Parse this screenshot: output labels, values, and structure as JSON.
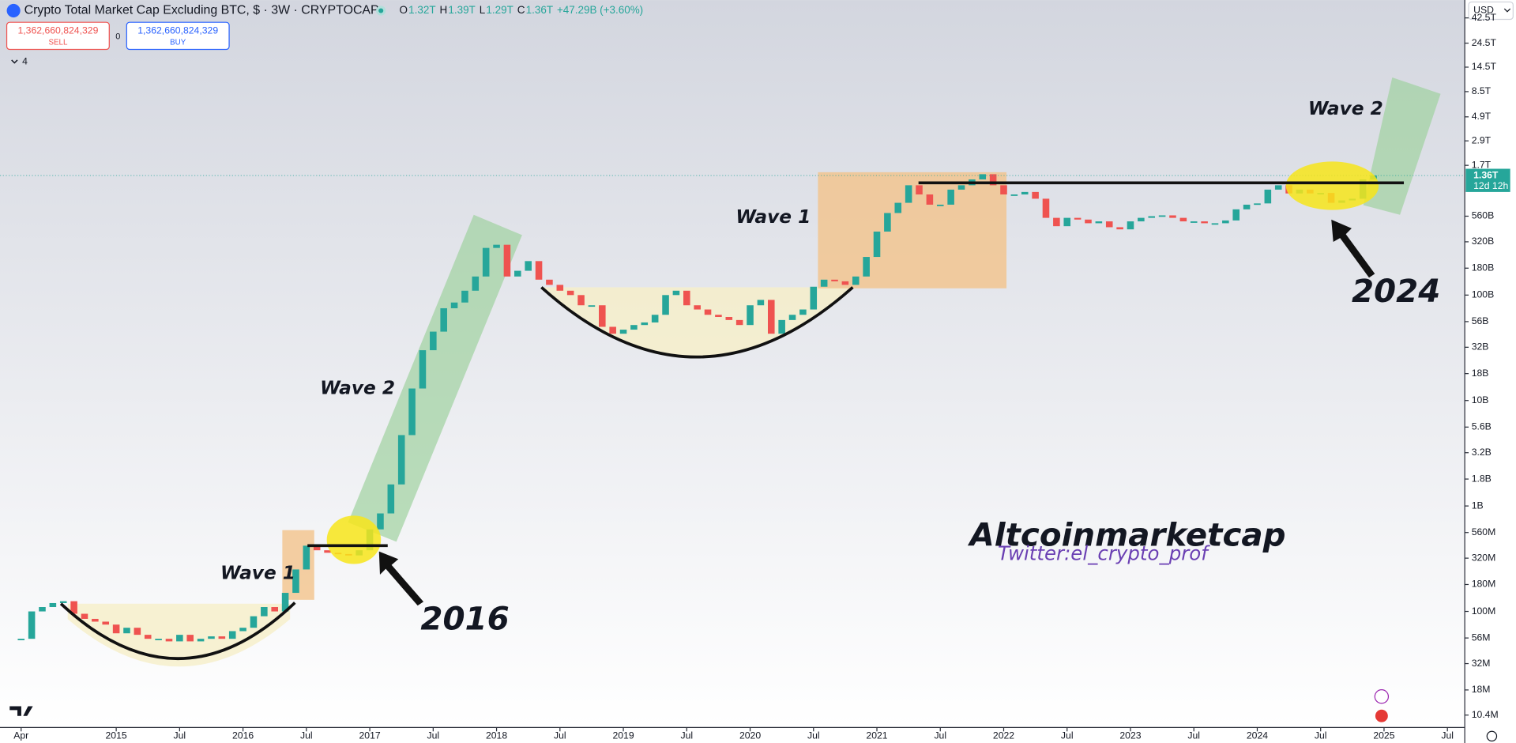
{
  "header": {
    "title": "Crypto Total Market Cap Excluding BTC, $ · 3W · CRYPTOCAP",
    "ohlc": [
      {
        "label": "O",
        "value": "1.32T"
      },
      {
        "label": "H",
        "value": "1.39T"
      },
      {
        "label": "L",
        "value": "1.29T"
      },
      {
        "label": "C",
        "value": "1.36T"
      }
    ],
    "change": "+47.29B (+3.60%)",
    "sell": {
      "price": "1,362,660,824,329",
      "label": "SELL"
    },
    "spread": "0",
    "buy": {
      "price": "1,362,660,824,329",
      "label": "BUY"
    },
    "indicators": "4",
    "currency": "USD",
    "price_tag": {
      "value": "1.36T",
      "countdown": "12d 12h"
    }
  },
  "chart_data": {
    "type": "candlestick",
    "x": [
      "2014-04",
      "2014-05",
      "2014-06",
      "2014-07",
      "2014-08",
      "2014-09",
      "2014-10",
      "2014-11",
      "2014-12",
      "2015-01",
      "2015-02",
      "2015-03",
      "2015-04",
      "2015-05",
      "2015-06",
      "2015-07",
      "2015-08",
      "2015-09",
      "2015-10",
      "2015-11",
      "2015-12",
      "2016-01",
      "2016-02",
      "2016-03",
      "2016-04",
      "2016-05",
      "2016-06",
      "2016-07",
      "2016-08",
      "2016-09",
      "2016-10",
      "2016-11",
      "2016-12",
      "2017-01",
      "2017-02",
      "2017-03",
      "2017-04",
      "2017-05",
      "2017-06",
      "2017-07",
      "2017-08",
      "2017-09",
      "2017-10",
      "2017-11",
      "2017-12",
      "2018-01",
      "2018-02",
      "2018-03",
      "2018-04",
      "2018-05",
      "2018-06",
      "2018-07",
      "2018-08",
      "2018-09",
      "2018-10",
      "2018-11",
      "2018-12",
      "2019-01",
      "2019-02",
      "2019-03",
      "2019-04",
      "2019-05",
      "2019-06",
      "2019-07",
      "2019-08",
      "2019-09",
      "2019-10",
      "2019-11",
      "2019-12",
      "2020-01",
      "2020-02",
      "2020-03",
      "2020-04",
      "2020-05",
      "2020-06",
      "2020-07",
      "2020-08",
      "2020-09",
      "2020-10",
      "2020-11",
      "2020-12",
      "2021-01",
      "2021-02",
      "2021-03",
      "2021-04",
      "2021-05",
      "2021-06",
      "2021-07",
      "2021-08",
      "2021-09",
      "2021-10",
      "2021-11",
      "2021-12",
      "2022-01",
      "2022-02",
      "2022-03",
      "2022-04",
      "2022-05",
      "2022-06",
      "2022-07",
      "2022-08",
      "2022-09",
      "2022-10",
      "2022-11",
      "2022-12",
      "2023-01",
      "2023-02",
      "2023-03",
      "2023-04",
      "2023-05",
      "2023-06",
      "2023-07",
      "2023-08",
      "2023-09",
      "2023-10",
      "2023-11",
      "2023-12",
      "2024-01",
      "2024-02",
      "2024-03",
      "2024-04",
      "2024-05",
      "2024-06",
      "2024-07",
      "2024-08",
      "2024-09",
      "2024-10",
      "2024-11",
      "2024-12"
    ],
    "series": [
      {
        "up_color": "#26a69a",
        "down_color": "#ef5350",
        "values": [
          55000000,
          100000000,
          110000000,
          120000000,
          125000000,
          95000000,
          85000000,
          80000000,
          75000000,
          62000000,
          70000000,
          60000000,
          55000000,
          55000000,
          52000000,
          60000000,
          52000000,
          55000000,
          58000000,
          55000000,
          65000000,
          70000000,
          90000000,
          110000000,
          100000000,
          150000000,
          250000000,
          420000000,
          380000000,
          360000000,
          350000000,
          340000000,
          380000000,
          600000000,
          850000000,
          1600000000,
          4700000000,
          13000000000,
          30000000000,
          45000000000,
          75000000000,
          85000000000,
          110000000000,
          150000000000,
          280000000000,
          300000000000,
          150000000000,
          170000000000,
          210000000000,
          140000000000,
          125000000000,
          110000000000,
          100000000000,
          80000000000,
          80000000000,
          50000000000,
          43000000000,
          47000000000,
          52000000000,
          55000000000,
          65000000000,
          100000000000,
          110000000000,
          80000000000,
          73000000000,
          65000000000,
          62000000000,
          58000000000,
          52000000000,
          80000000000,
          90000000000,
          43000000000,
          58000000000,
          65000000000,
          73000000000,
          120000000000,
          140000000000,
          135000000000,
          125000000000,
          150000000000,
          230000000000,
          400000000000,
          600000000000,
          750000000000,
          1100000000000,
          900000000000,
          720000000000,
          720000000000,
          1000000000000,
          1100000000000,
          1250000000000,
          1400000000000,
          1100000000000,
          900000000000,
          900000000000,
          950000000000,
          820000000000,
          540000000000,
          450000000000,
          540000000000,
          520000000000,
          480000000000,
          500000000000,
          440000000000,
          420000000000,
          500000000000,
          540000000000,
          560000000000,
          570000000000,
          540000000000,
          500000000000,
          500000000000,
          480000000000,
          480000000000,
          510000000000,
          650000000000,
          720000000000,
          740000000000,
          1000000000000,
          1100000000000,
          920000000000,
          1000000000000,
          920000000000,
          930000000000,
          750000000000,
          790000000000,
          820000000000,
          1250000000000,
          1360000000000
        ]
      }
    ],
    "xlim": [
      "2014-02",
      "2025-08"
    ],
    "xticks": [
      {
        "value": "2014-04",
        "label": "Apr"
      },
      {
        "value": "2015-01",
        "label": "2015"
      },
      {
        "value": "2015-07",
        "label": "Jul"
      },
      {
        "value": "2016-01",
        "label": "2016"
      },
      {
        "value": "2016-07",
        "label": "Jul"
      },
      {
        "value": "2017-01",
        "label": "2017"
      },
      {
        "value": "2017-07",
        "label": "Jul"
      },
      {
        "value": "2018-01",
        "label": "2018"
      },
      {
        "value": "2018-07",
        "label": "Jul"
      },
      {
        "value": "2019-01",
        "label": "2019"
      },
      {
        "value": "2019-07",
        "label": "Jul"
      },
      {
        "value": "2020-01",
        "label": "2020"
      },
      {
        "value": "2020-07",
        "label": "Jul"
      },
      {
        "value": "2021-01",
        "label": "2021"
      },
      {
        "value": "2021-07",
        "label": "Jul"
      },
      {
        "value": "2022-01",
        "label": "2022"
      },
      {
        "value": "2022-07",
        "label": "Jul"
      },
      {
        "value": "2023-01",
        "label": "2023"
      },
      {
        "value": "2023-07",
        "label": "Jul"
      },
      {
        "value": "2024-01",
        "label": "2024"
      },
      {
        "value": "2024-07",
        "label": "Jul"
      },
      {
        "value": "2025-01",
        "label": "2025"
      },
      {
        "value": "2025-07",
        "label": "Jul"
      }
    ],
    "log_scale": true,
    "ylim": [
      7930000,
      62800000000000
    ],
    "yticks": [
      {
        "value": 42500000000000,
        "label": "42.5T"
      },
      {
        "value": 24500000000000,
        "label": "24.5T"
      },
      {
        "value": 14500000000000,
        "label": "14.5T"
      },
      {
        "value": 8500000000000,
        "label": "8.5T"
      },
      {
        "value": 4900000000000,
        "label": "4.9T"
      },
      {
        "value": 2900000000000,
        "label": "2.9T"
      },
      {
        "value": 1700000000000,
        "label": "1.7T"
      },
      {
        "value": 560000000000,
        "label": "560B"
      },
      {
        "value": 320000000000,
        "label": "320B"
      },
      {
        "value": 180000000000,
        "label": "180B"
      },
      {
        "value": 100000000000,
        "label": "100B"
      },
      {
        "value": 56000000000,
        "label": "56B"
      },
      {
        "value": 32000000000,
        "label": "32B"
      },
      {
        "value": 18000000000,
        "label": "18B"
      },
      {
        "value": 10000000000,
        "label": "10B"
      },
      {
        "value": 5600000000,
        "label": "5.6B"
      },
      {
        "value": 3200000000,
        "label": "3.2B"
      },
      {
        "value": 1800000000,
        "label": "1.8B"
      },
      {
        "value": 1000000000,
        "label": "1B"
      },
      {
        "value": 560000000,
        "label": "560M"
      },
      {
        "value": 320000000,
        "label": "320M"
      },
      {
        "value": 180000000,
        "label": "180M"
      },
      {
        "value": 100000000,
        "label": "100M"
      },
      {
        "value": 56000000,
        "label": "56M"
      },
      {
        "value": 32000000,
        "label": "32M"
      },
      {
        "value": 18000000,
        "label": "18M"
      },
      {
        "value": 10400000,
        "label": "10.4M"
      }
    ],
    "grid": false,
    "annotations": [
      "Wave 1",
      "2016",
      "Wave 2",
      "Wave 1",
      "Wave 2",
      "2024",
      "Altcoinmarketcap",
      "Twitter:el_crypto_prof"
    ]
  }
}
